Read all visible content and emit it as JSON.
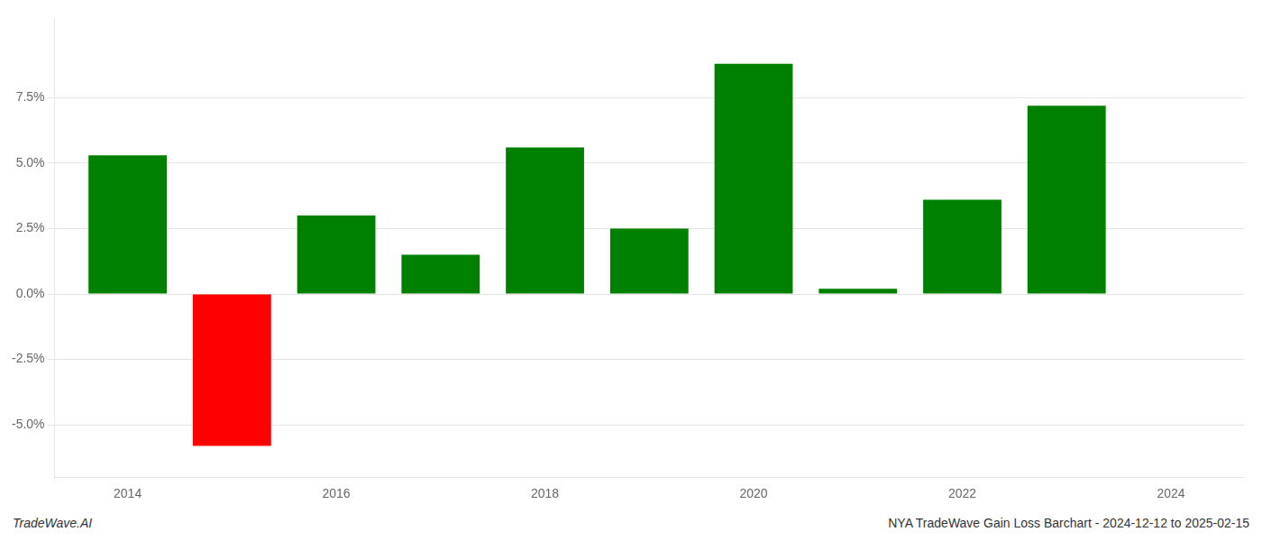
{
  "chart_data": {
    "type": "bar",
    "x": [
      2014,
      2015,
      2016,
      2017,
      2018,
      2019,
      2020,
      2021,
      2022,
      2023
    ],
    "values": [
      0.053,
      -0.058,
      0.03,
      0.015,
      0.056,
      0.025,
      0.088,
      0.002,
      0.036,
      0.072
    ],
    "colors": [
      "#008000",
      "#ff0000",
      "#008000",
      "#008000",
      "#008000",
      "#008000",
      "#008000",
      "#008000",
      "#008000",
      "#008000"
    ],
    "xlim": [
      2013.3,
      2024.7
    ],
    "xticks": [
      2014,
      2016,
      2018,
      2020,
      2022,
      2024
    ],
    "ylim": [
      -0.07,
      0.105
    ],
    "yticks": [
      {
        "value": -0.05,
        "label": "-5.0%"
      },
      {
        "value": -0.025,
        "label": "-2.5%"
      },
      {
        "value": 0.0,
        "label": "0.0%"
      },
      {
        "value": 0.025,
        "label": "2.5%"
      },
      {
        "value": 0.05,
        "label": "5.0%"
      },
      {
        "value": 0.075,
        "label": "7.5%"
      }
    ],
    "grid": true,
    "annotations": [
      "TradeWave.AI",
      "NYA TradeWave Gain Loss Barchart - 2024-12-12 to 2025-02-15"
    ]
  }
}
